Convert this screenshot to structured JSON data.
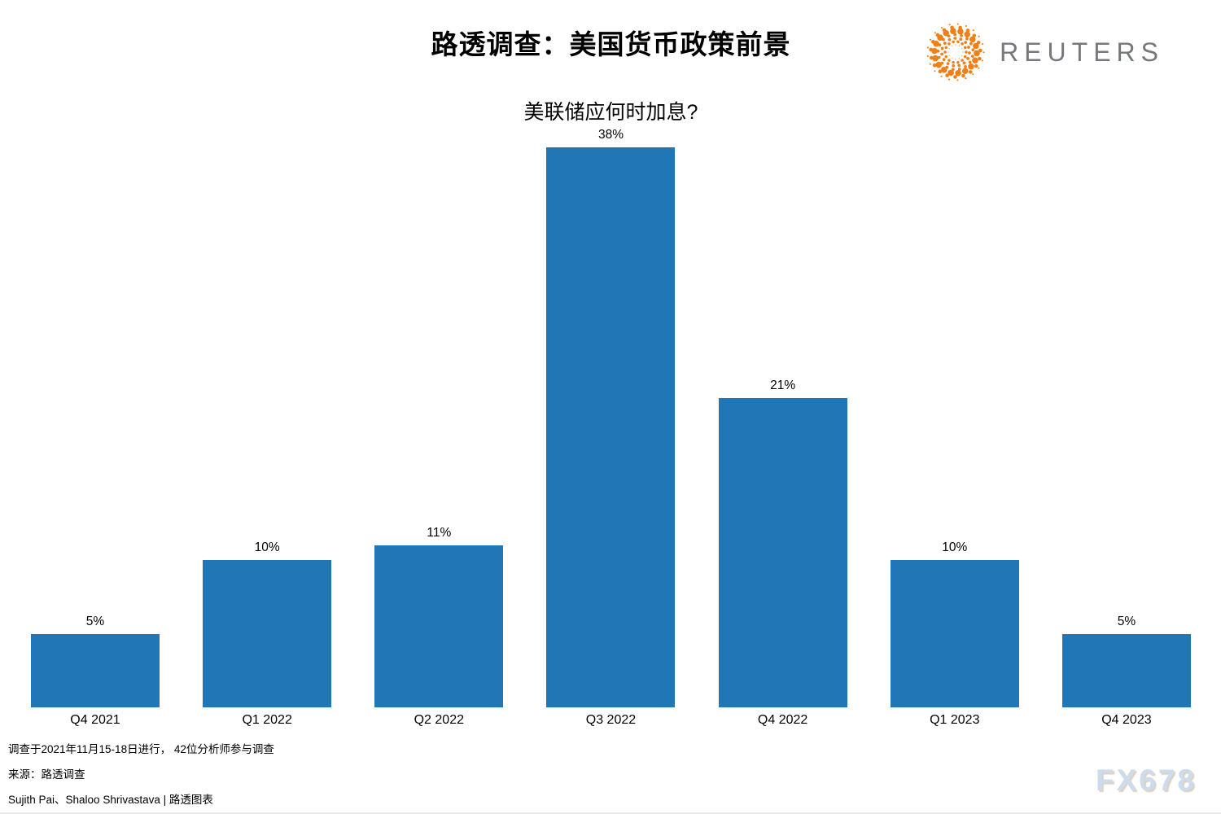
{
  "header": {
    "title": "路透调查：美国货币政策前景",
    "subtitle": "美联储应何时加息?"
  },
  "logo": {
    "brand": "REUTERS",
    "sphere_color": "#ef8019",
    "text_color": "#77787b"
  },
  "chart_data": {
    "type": "bar",
    "title": "路透调查：美国货币政策前景",
    "subtitle": "美联储应何时加息?",
    "categories": [
      "Q4 2021",
      "Q1 2022",
      "Q2 2022",
      "Q3 2022",
      "Q4 2022",
      "Q1 2023",
      "Q4 2023"
    ],
    "values": [
      5,
      10,
      11,
      38,
      21,
      10,
      5
    ],
    "value_labels": [
      "5%",
      "10%",
      "11%",
      "38%",
      "21%",
      "10%",
      "5%"
    ],
    "unit": "%",
    "bar_color": "#2176b5",
    "xlabel": "",
    "ylabel": "",
    "ylim": [
      0,
      40
    ],
    "grid": false,
    "legend": "none",
    "axis_lines": "none"
  },
  "footer": {
    "note": "调查于2021年11月15-18日进行， 42位分析师参与调查",
    "source": "来源：路透调查",
    "credit": "Sujith Pai、Shaloo Shrivastava | 路透图表"
  },
  "watermark": {
    "text": "FX678"
  }
}
